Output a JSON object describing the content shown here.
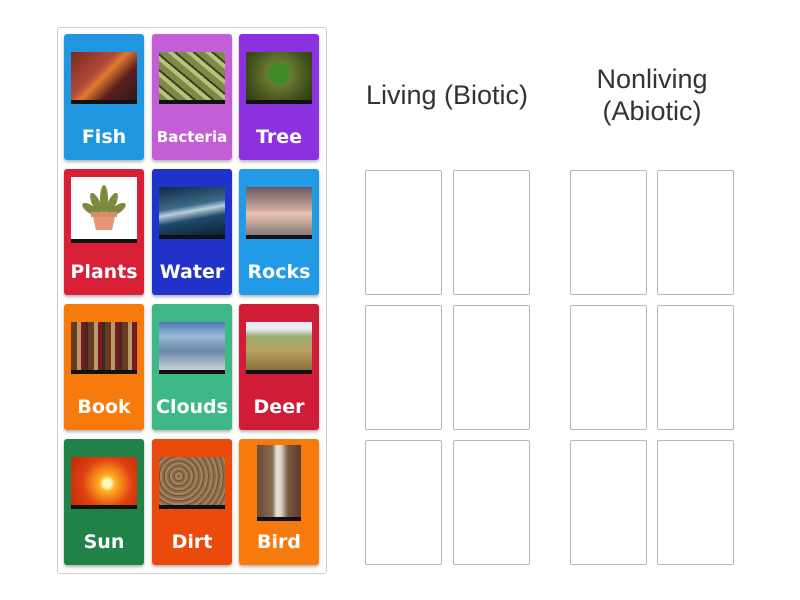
{
  "cards": [
    {
      "label": "Fish",
      "color": "#2196e0",
      "image": "clownfish-photo"
    },
    {
      "label": "Bacteria",
      "color": "#c35fd6",
      "image": "bacteria-photo"
    },
    {
      "label": "Tree",
      "color": "#8b31e0",
      "image": "tree-photo"
    },
    {
      "label": "Plants",
      "color": "#d81f36",
      "image": "potted-plant-illustration"
    },
    {
      "label": "Water",
      "color": "#2233cc",
      "image": "ocean-wave-photo"
    },
    {
      "label": "Rocks",
      "color": "#229be6",
      "image": "rocks-lake-photo"
    },
    {
      "label": "Book",
      "color": "#f77a0c",
      "image": "books-photo"
    },
    {
      "label": "Clouds",
      "color": "#3fb887",
      "image": "clouds-photo"
    },
    {
      "label": "Deer",
      "color": "#d11c38",
      "image": "deer-photo"
    },
    {
      "label": "Sun",
      "color": "#208247",
      "image": "sunset-photo"
    },
    {
      "label": "Dirt",
      "color": "#ea4a0c",
      "image": "dirt-photo"
    },
    {
      "label": "Bird",
      "color": "#f77a0c",
      "image": "booby-bird-photo"
    }
  ],
  "groups": [
    {
      "title": "Living (Biotic)"
    },
    {
      "title_line1": "Nonliving",
      "title_line2": "(Abiotic)"
    }
  ]
}
